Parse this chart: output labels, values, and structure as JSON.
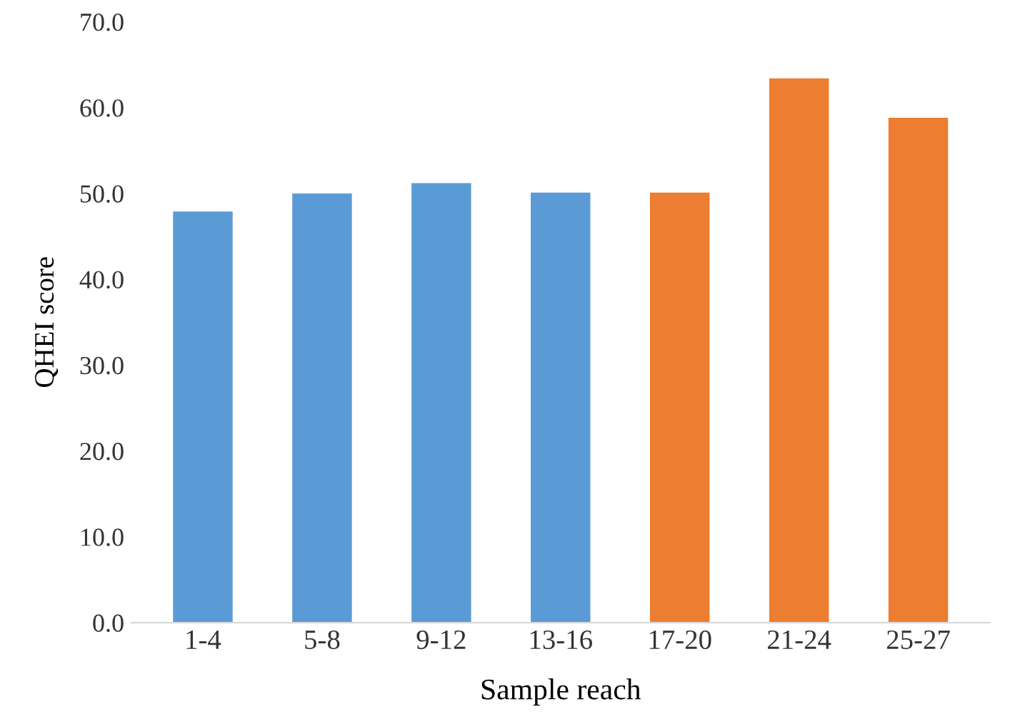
{
  "chart_data": {
    "type": "bar",
    "xlabel": "Sample reach",
    "ylabel": "QHEI score",
    "categories": [
      "1-4",
      "5-8",
      "9-12",
      "13-16",
      "17-20",
      "21-24",
      "25-27"
    ],
    "values": [
      47.9,
      50.0,
      51.2,
      50.1,
      50.1,
      63.4,
      58.8
    ],
    "colors": [
      "#5b9bd5",
      "#5b9bd5",
      "#5b9bd5",
      "#5b9bd5",
      "#ed7d31",
      "#ed7d31",
      "#ed7d31"
    ],
    "ylim": [
      0,
      70
    ],
    "yticks": [
      {
        "value": 0,
        "label": "0.0"
      },
      {
        "value": 10,
        "label": "10.0"
      },
      {
        "value": 20,
        "label": "20.0"
      },
      {
        "value": 30,
        "label": "30.0"
      },
      {
        "value": 40,
        "label": "40.0"
      },
      {
        "value": 50,
        "label": "50.0"
      },
      {
        "value": 60,
        "label": "60.0"
      },
      {
        "value": 70,
        "label": "70.0"
      }
    ],
    "grid": false,
    "legend": false
  }
}
